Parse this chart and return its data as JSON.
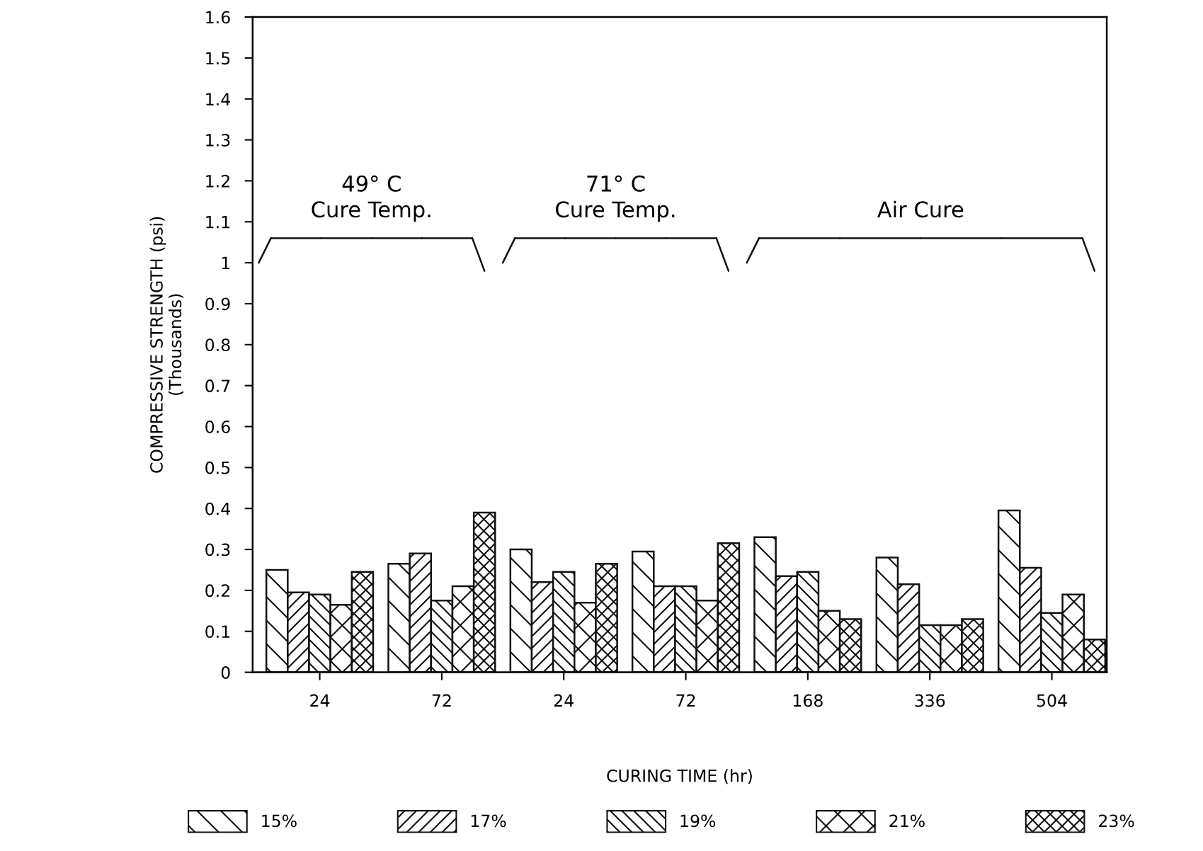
{
  "chart_data": {
    "type": "bar",
    "xlabel": "CURING TIME (hr)",
    "ylabel": "COMPRESSIVE STRENGTH (psi)\n(Thousands)",
    "categories": [
      "24",
      "72",
      "24",
      "72",
      "168",
      "336",
      "504"
    ],
    "series": [
      {
        "name": "15%",
        "color": "#111111",
        "values": [
          0.25,
          0.265,
          0.3,
          0.295,
          0.33,
          0.28,
          0.395
        ]
      },
      {
        "name": "17%",
        "color": "#111111",
        "values": [
          0.195,
          0.29,
          0.22,
          0.21,
          0.235,
          0.215,
          0.255
        ]
      },
      {
        "name": "19%",
        "color": "#111111",
        "values": [
          0.19,
          0.175,
          0.245,
          0.21,
          0.245,
          0.115,
          0.145
        ]
      },
      {
        "name": "21%",
        "color": "#111111",
        "values": [
          0.165,
          0.21,
          0.17,
          0.175,
          0.15,
          0.115,
          0.19
        ]
      },
      {
        "name": "23%",
        "color": "#111111",
        "values": [
          0.245,
          0.39,
          0.265,
          0.315,
          0.13,
          0.13,
          0.08
        ]
      }
    ],
    "ylim": [
      0,
      1.6
    ],
    "yticks": [
      0,
      0.1,
      0.2,
      0.3,
      0.4,
      0.5,
      0.6,
      0.7,
      0.8,
      0.9,
      1,
      1.1,
      1.2,
      1.3,
      1.4,
      1.5,
      1.6
    ],
    "annotations": [
      "49° C\nCure Temp.",
      "71° C\nCure Temp.",
      "Air Cure"
    ],
    "grid": false,
    "legend": "bottom"
  }
}
